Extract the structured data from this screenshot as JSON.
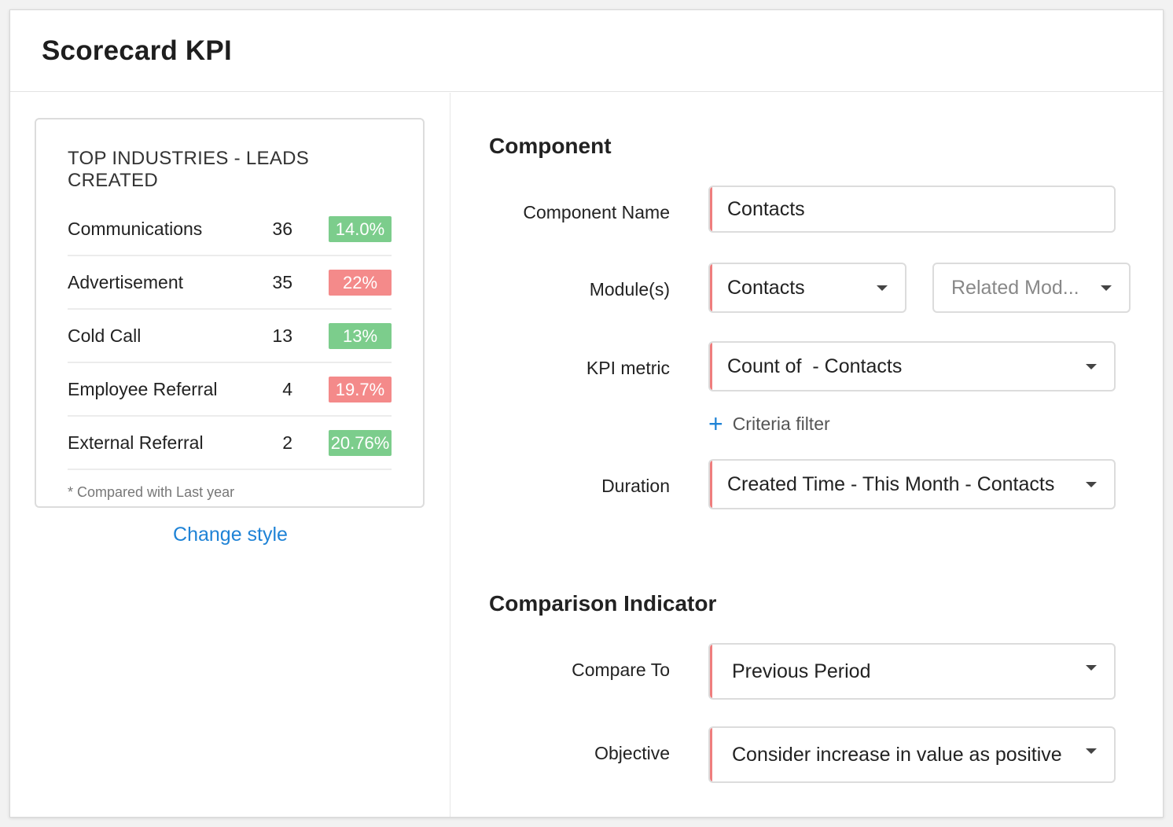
{
  "header": {
    "title": "Scorecard KPI"
  },
  "preview": {
    "title": "TOP INDUSTRIES - LEADS CREATED",
    "rows": [
      {
        "name": "Communications",
        "count": "36",
        "badge": "14.0%",
        "badge_color": "#7ccd8c"
      },
      {
        "name": "Advertisement",
        "count": "35",
        "badge": "22%",
        "badge_color": "#f48a8a"
      },
      {
        "name": "Cold Call",
        "count": "13",
        "badge": "13%",
        "badge_color": "#7ccd8c"
      },
      {
        "name": "Employee Referral",
        "count": "4",
        "badge": "19.7%",
        "badge_color": "#f48a8a"
      },
      {
        "name": "External Referral",
        "count": "2",
        "badge": "20.76%",
        "badge_color": "#7ccd8c"
      }
    ],
    "footnote": "* Compared with Last year",
    "change_style": "Change style"
  },
  "component": {
    "section_title": "Component",
    "name_label": "Component Name",
    "name_value": "Contacts",
    "modules_label": "Module(s)",
    "module_value": "Contacts",
    "related_placeholder": "Related Mod...",
    "kpi_label": "KPI metric",
    "kpi_value": "Count of  - Contacts",
    "criteria_label": "Criteria filter",
    "duration_label": "Duration",
    "duration_value": "Created Time - This Month - Contacts"
  },
  "comparison": {
    "section_title": "Comparison Indicator",
    "compare_label": "Compare To",
    "compare_value": "Previous Period",
    "objective_label": "Objective",
    "objective_value": "Consider increase in value as positive"
  },
  "colors": {
    "accent": "#1f83d6",
    "required_bar": "#ef7d7d",
    "positive": "#7ccd8c",
    "negative": "#f48a8a"
  }
}
